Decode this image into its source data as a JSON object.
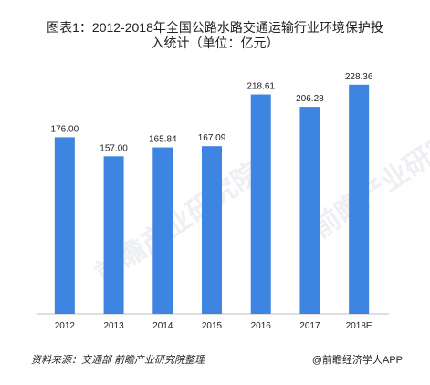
{
  "chart_data": {
    "type": "bar",
    "title": "图表1：2012-2018年全国公路水路交通运输行业环境保护投入统计（单位：亿元）",
    "title_lines": [
      "图表1：2012-2018年全国公路水路交通运输行业环境保护投",
      "入统计（单位：亿元）"
    ],
    "categories": [
      "2012",
      "2013",
      "2014",
      "2015",
      "2016",
      "2017",
      "2018E"
    ],
    "values": [
      176.0,
      157.0,
      165.84,
      167.09,
      218.61,
      206.28,
      228.36
    ],
    "value_labels": [
      "176.00",
      "157.00",
      "165.84",
      "167.09",
      "218.61",
      "206.28",
      "228.36"
    ],
    "ylim": [
      0,
      240
    ],
    "bar_color": "#3d85e0",
    "grid": false,
    "legend": "none"
  },
  "watermark": {
    "left_text": "前瞻产业研究院",
    "right_text": "前瞻产业研究院"
  },
  "footer": {
    "source": "资料来源：交通部 前瞻产业研究院整理",
    "brand": "@前瞻经济学人APP"
  }
}
